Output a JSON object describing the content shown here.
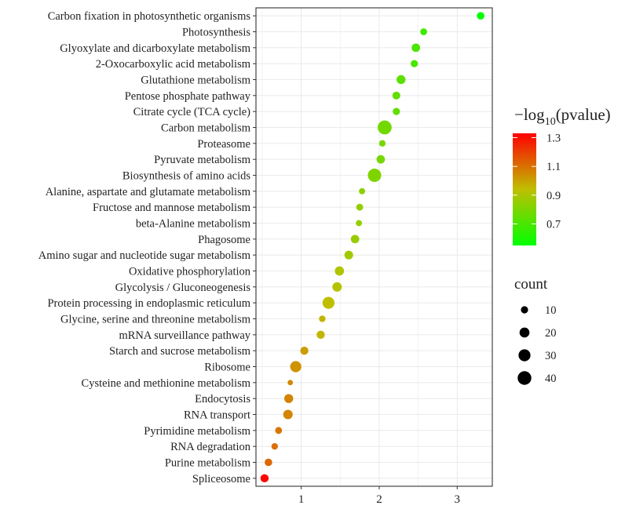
{
  "chart_data": {
    "type": "scatter",
    "subtype": "bubble",
    "title": "",
    "xlabel": "",
    "ylabel": "",
    "xlim": [
      0.42,
      3.45
    ],
    "xticks": [
      1,
      2,
      3
    ],
    "grid": true,
    "categories": [
      "Carbon fixation in photosynthetic organisms",
      "Photosynthesis",
      "Glyoxylate and dicarboxylate metabolism",
      "2-Oxocarboxylic acid metabolism",
      "Glutathione metabolism",
      "Pentose phosphate pathway",
      "Citrate cycle (TCA cycle)",
      "Carbon metabolism",
      "Proteasome",
      "Pyruvate metabolism",
      "Biosynthesis of amino acids",
      "Alanine, aspartate and glutamate metabolism",
      "Fructose and mannose metabolism",
      "beta-Alanine metabolism",
      "Phagosome",
      "Amino sugar and nucleotide sugar metabolism",
      "Oxidative phosphorylation",
      "Glycolysis / Gluconeogenesis",
      "Protein processing in endoplasmic reticulum",
      "Glycine, serine and threonine metabolism",
      "mRNA surveillance pathway",
      "Starch and sucrose metabolism",
      "Ribosome",
      "Cysteine and methionine metabolism",
      "Endocytosis",
      "RNA transport",
      "Pyrimidine metabolism",
      "RNA degradation",
      "Purine metabolism",
      "Spliceosome"
    ],
    "x": [
      3.3,
      2.57,
      2.47,
      2.45,
      2.28,
      2.22,
      2.22,
      2.07,
      2.04,
      2.02,
      1.94,
      1.78,
      1.75,
      1.74,
      1.69,
      1.61,
      1.49,
      1.46,
      1.35,
      1.27,
      1.25,
      1.04,
      0.93,
      0.86,
      0.84,
      0.83,
      0.71,
      0.66,
      0.58,
      0.53
    ],
    "count": [
      11,
      9,
      14,
      10,
      16,
      12,
      10,
      42,
      8,
      14,
      38,
      7,
      9,
      7,
      14,
      15,
      17,
      18,
      30,
      8,
      13,
      13,
      26,
      5,
      16,
      18,
      9,
      8,
      11,
      13
    ],
    "color_value": [
      0.55,
      0.68,
      0.7,
      0.7,
      0.74,
      0.75,
      0.75,
      0.78,
      0.79,
      0.79,
      0.81,
      0.84,
      0.85,
      0.85,
      0.86,
      0.88,
      0.91,
      0.92,
      0.94,
      0.96,
      0.96,
      1.01,
      1.03,
      1.05,
      1.06,
      1.06,
      1.09,
      1.1,
      1.12,
      1.32
    ],
    "colorbar": {
      "title_prefix": "−log",
      "title_subscript": "10",
      "title_suffix": "(pvalue)",
      "ticks": [
        "0.7",
        "0.9",
        "1.1",
        "1.3"
      ],
      "tick_values": [
        0.7,
        0.9,
        1.1,
        1.3
      ],
      "range": [
        0.55,
        1.33
      ],
      "low_color": "#00ff00",
      "mid_color": "#bfbf00",
      "high_color": "#ff0000"
    },
    "size_legend": {
      "title": "count",
      "values": [
        10,
        20,
        30,
        40
      ],
      "labels": [
        "10",
        "20",
        "30",
        "40"
      ]
    },
    "colors": {
      "grid": "#ebebeb",
      "panel_border": "#333333",
      "legend_dot": "#000000"
    }
  }
}
